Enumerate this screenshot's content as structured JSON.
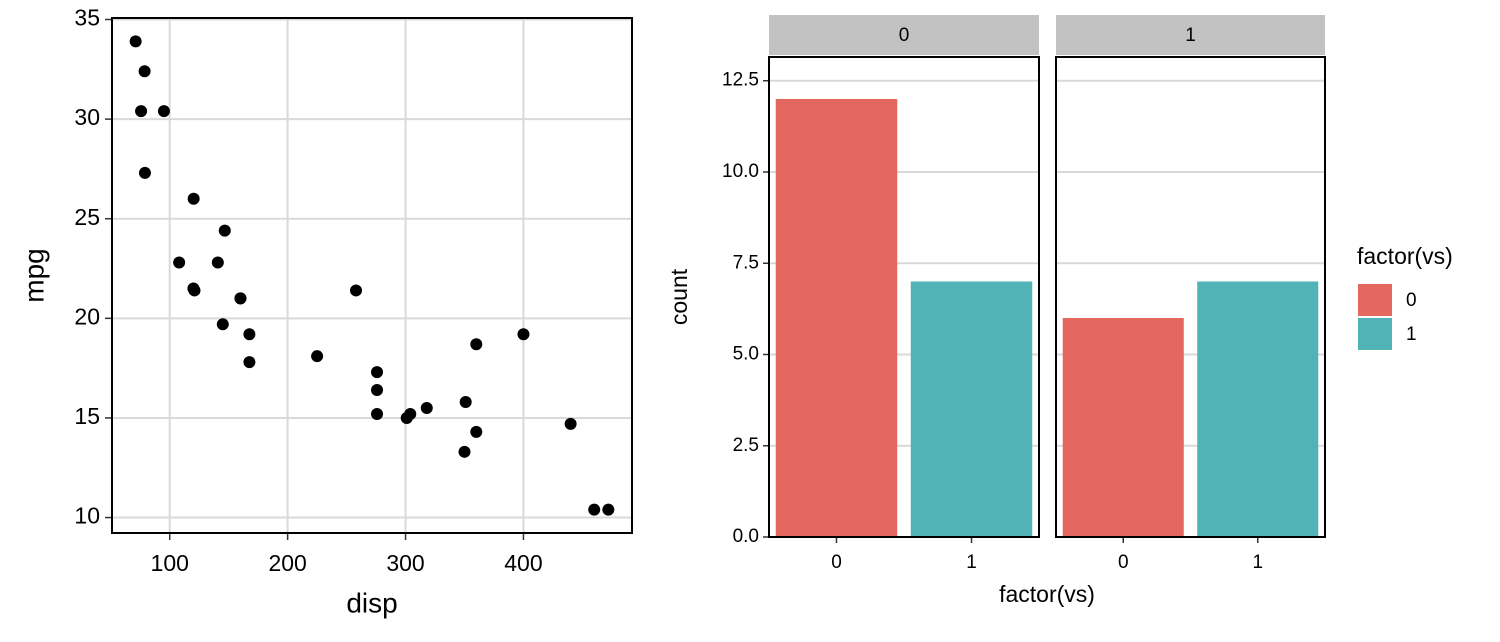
{
  "chart_data": [
    {
      "type": "scatter",
      "x_label": "disp",
      "y_label": "mpg",
      "x": [
        160,
        160,
        108,
        258,
        360,
        225,
        360,
        146.7,
        140.8,
        167.6,
        167.6,
        275.8,
        275.8,
        275.8,
        472,
        460,
        440,
        78.7,
        75.7,
        71.1,
        120.1,
        318,
        304,
        350,
        400,
        79,
        120.3,
        95.1,
        351,
        145,
        301,
        121
      ],
      "y": [
        21.0,
        21.0,
        22.8,
        21.4,
        18.7,
        18.1,
        14.3,
        24.4,
        22.8,
        19.2,
        17.8,
        16.4,
        17.3,
        15.2,
        10.4,
        10.4,
        14.7,
        32.4,
        30.4,
        33.9,
        21.5,
        15.5,
        15.2,
        13.3,
        19.2,
        27.3,
        26.0,
        30.4,
        15.8,
        19.7,
        15.0,
        21.4
      ],
      "color": "#000000",
      "xlim": [
        51.05,
        492.05
      ],
      "xticks": [
        100,
        200,
        300,
        400
      ],
      "ylim": [
        9.225,
        35.075
      ],
      "yticks": [
        10,
        15,
        20,
        25,
        30,
        35
      ],
      "grid": true
    },
    {
      "type": "bar",
      "x_label": "factor(vs)",
      "y_label": "count",
      "facets": [
        "0",
        "1"
      ],
      "categories": [
        "0",
        "1"
      ],
      "legend_title": "factor(vs)",
      "legend": "right",
      "series": [
        {
          "name": "0",
          "color": "#e46860",
          "values": [
            12,
            6
          ]
        },
        {
          "name": "1",
          "color": "#52b3b7",
          "values": [
            7,
            7
          ]
        }
      ],
      "ylim": [
        0,
        13.15
      ],
      "yticks": [
        {
          "value": 0,
          "label": "0.0"
        },
        2.5,
        {
          "value": 5,
          "label": "5.0"
        },
        7.5,
        {
          "value": 10,
          "label": "10.0"
        },
        12.5
      ],
      "grid": true
    }
  ]
}
